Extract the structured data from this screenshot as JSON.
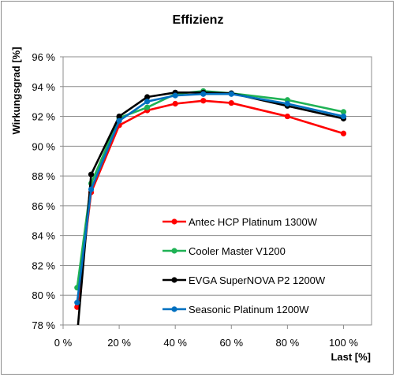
{
  "chart_data": {
    "type": "line",
    "title": "Effizienz",
    "xlabel": "Last [%]",
    "ylabel": "Wirkungsgrad [%]",
    "xlim": [
      0,
      110
    ],
    "ylim": [
      78,
      96
    ],
    "x_ticks": [
      0,
      20,
      40,
      60,
      80,
      100
    ],
    "x_tick_labels": [
      "0 %",
      "20 %",
      "40 %",
      "60 %",
      "80 %",
      "100 %"
    ],
    "y_ticks": [
      78,
      80,
      82,
      84,
      86,
      88,
      90,
      92,
      94,
      96
    ],
    "y_tick_labels": [
      "78 %",
      "80 %",
      "82 %",
      "84 %",
      "86 %",
      "88 %",
      "90 %",
      "92 %",
      "94 %",
      "96 %"
    ],
    "grid": "horizontal",
    "legend_position": "inside-bottom-right",
    "series": [
      {
        "name": "Antec HCP Platinum 1300W",
        "color": "#ff0000",
        "points": [
          [
            5,
            79.2
          ],
          [
            10,
            86.9
          ],
          [
            20,
            91.4
          ],
          [
            30,
            92.4
          ],
          [
            40,
            92.85
          ],
          [
            50,
            93.05
          ],
          [
            60,
            92.9
          ],
          [
            80,
            92.0
          ],
          [
            100,
            90.85
          ]
        ]
      },
      {
        "name": "Cooler Master V1200",
        "color": "#1fb255",
        "points": [
          [
            5,
            80.5
          ],
          [
            10,
            87.5
          ],
          [
            20,
            91.9
          ],
          [
            30,
            92.6
          ],
          [
            40,
            93.5
          ],
          [
            50,
            93.7
          ],
          [
            60,
            93.55
          ],
          [
            80,
            93.1
          ],
          [
            100,
            92.3
          ]
        ]
      },
      {
        "name": "EVGA SuperNOVA P2 1200W",
        "color": "#000000",
        "points": [
          [
            5,
            77.3
          ],
          [
            10,
            88.1
          ],
          [
            20,
            92.0
          ],
          [
            30,
            93.3
          ],
          [
            40,
            93.6
          ],
          [
            50,
            93.6
          ],
          [
            60,
            93.55
          ],
          [
            80,
            92.7
          ],
          [
            100,
            91.85
          ]
        ]
      },
      {
        "name": "Seasonic Platinum 1200W",
        "color": "#0070c0",
        "points": [
          [
            5,
            79.5
          ],
          [
            10,
            87.1
          ],
          [
            20,
            91.7
          ],
          [
            30,
            93.0
          ],
          [
            40,
            93.4
          ],
          [
            50,
            93.5
          ],
          [
            60,
            93.5
          ],
          [
            80,
            92.85
          ],
          [
            100,
            92.0
          ]
        ]
      }
    ]
  }
}
